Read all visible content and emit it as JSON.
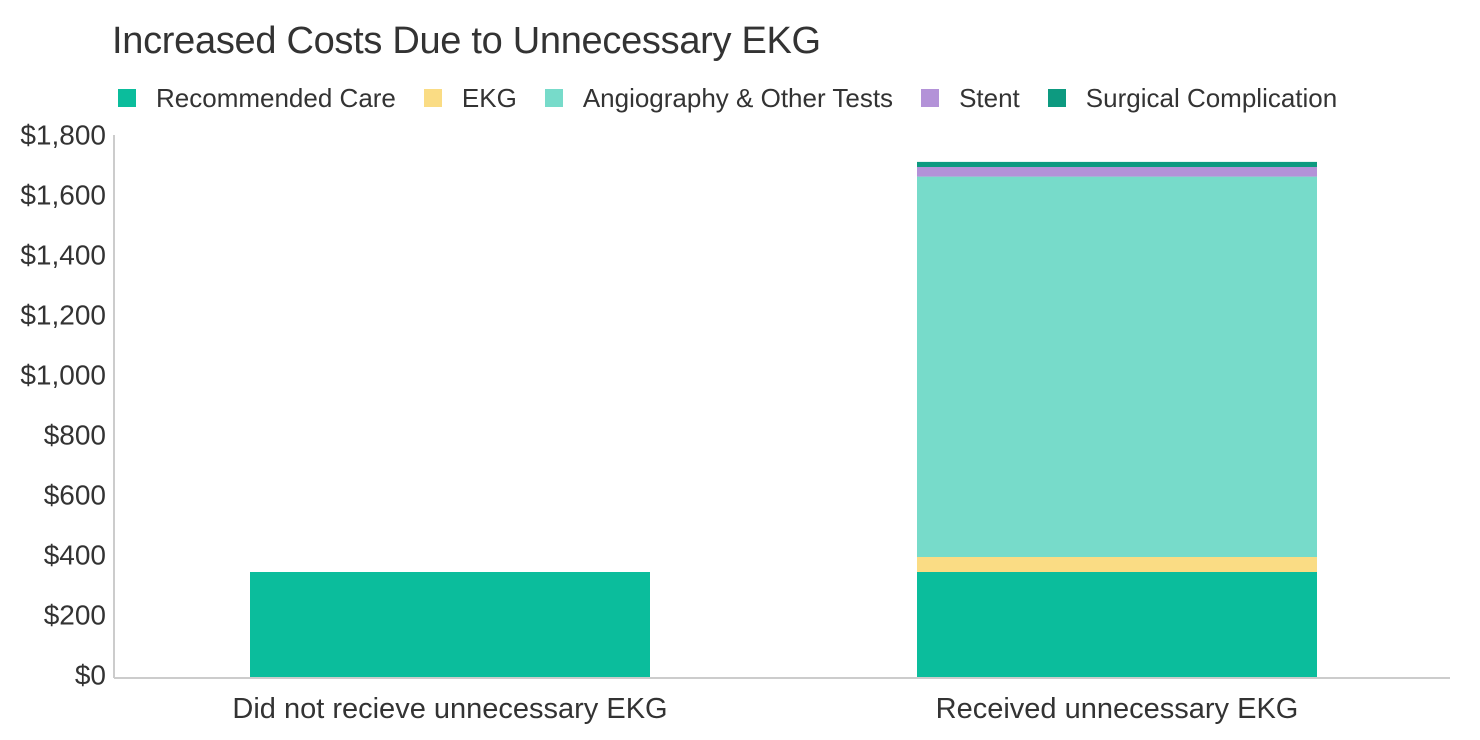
{
  "chart_data": {
    "type": "bar",
    "stacked": true,
    "title": "Increased Costs Due to Unnecessary EKG",
    "xlabel": "",
    "ylabel": "",
    "ylim": [
      0,
      1800
    ],
    "yticks": [
      0,
      200,
      400,
      600,
      800,
      1000,
      1200,
      1400,
      1600,
      1800
    ],
    "ytick_labels": [
      "$0",
      "$200",
      "$400",
      "$600",
      "$800",
      "$1,000",
      "$1,200",
      "$1,400",
      "$1,600",
      "$1,800"
    ],
    "grid": false,
    "legend_position": "top-left",
    "categories": [
      "Did not recieve unnecessary EKG",
      "Received unnecessary EKG"
    ],
    "series": [
      {
        "name": "Recommended Care",
        "color": "#0bbd9c",
        "values": [
          350,
          350
        ]
      },
      {
        "name": "EKG",
        "color": "#fadc84",
        "values": [
          0,
          50
        ]
      },
      {
        "name": "Angiography & Other Tests",
        "color": "#77dbca",
        "values": [
          0,
          1268
        ]
      },
      {
        "name": "Stent",
        "color": "#b392d8",
        "values": [
          0,
          32
        ]
      },
      {
        "name": "Surgical Complication",
        "color": "#0d9a80",
        "values": [
          0,
          17
        ]
      }
    ]
  }
}
